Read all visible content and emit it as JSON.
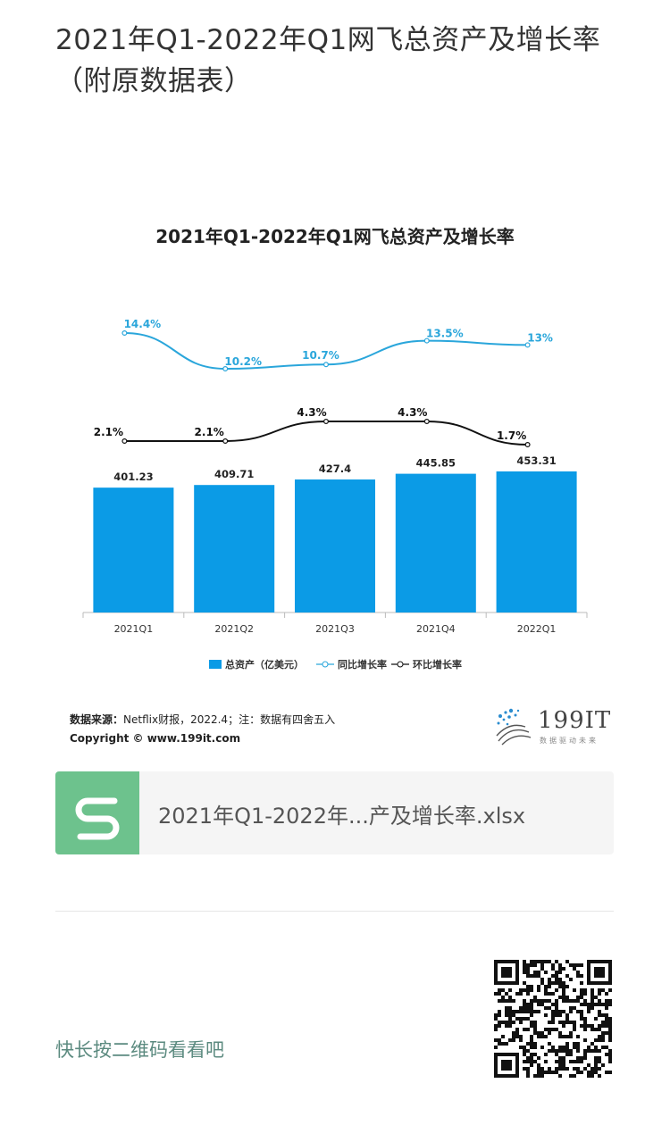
{
  "page": {
    "title": "2021年Q1-2022年Q1网飞总资产及增长率（附原数据表）"
  },
  "chart_data": {
    "type": "bar",
    "title": "2021年Q1-2022年Q1网飞总资产及增长率",
    "categories": [
      "2021Q1",
      "2021Q2",
      "2021Q3",
      "2021Q4",
      "2022Q1"
    ],
    "series": [
      {
        "name": "总资产（亿美元）",
        "kind": "bar",
        "values": [
          401.23,
          409.71,
          427.4,
          445.85,
          453.31
        ],
        "labels": [
          "401.23",
          "409.71",
          "427.4",
          "445.85",
          "453.31"
        ],
        "color": "#0b9be6"
      },
      {
        "name": "同比增长率",
        "kind": "line",
        "values": [
          14.4,
          10.2,
          10.7,
          13.5,
          13
        ],
        "labels": [
          "14.4%",
          "10.2%",
          "10.7%",
          "13.5%",
          "13%"
        ],
        "color": "#2aa6db"
      },
      {
        "name": "环比增长率",
        "kind": "line",
        "values": [
          2.1,
          2.1,
          4.3,
          4.3,
          1.7
        ],
        "labels": [
          "2.1%",
          "2.1%",
          "4.3%",
          "4.3%",
          "1.7%"
        ],
        "color": "#111111"
      }
    ],
    "legend_position": "bottom",
    "grid": false
  },
  "source": {
    "label": "数据来源：",
    "text": "Netflix财报，2022.4；注：数据有四舍五入",
    "copyright": "Copyright © www.199it.com"
  },
  "logo": {
    "text": "199IT",
    "sub": "数据驱动未来"
  },
  "file": {
    "name": "2021年Q1-2022年...产及增长率.xlsx"
  },
  "cta": {
    "text": "快长按二维码看看吧"
  },
  "colors": {
    "accent_green": "#6dc28d",
    "bar_blue": "#0b9be6",
    "yoy_line": "#2aa6db"
  }
}
